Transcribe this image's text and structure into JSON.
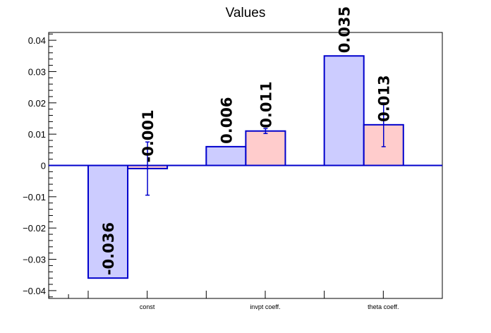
{
  "chart_data": {
    "type": "bar",
    "title": "Values",
    "categories": [
      "const",
      "invpt coeff.",
      "theta coeff."
    ],
    "series": [
      {
        "values": [
          -0.036,
          0.006,
          0.035
        ],
        "value_labels": [
          "-0.036",
          "0.006",
          "0.035"
        ],
        "fill": "#ccccff",
        "stroke": "#0000cc"
      },
      {
        "values": [
          -0.001,
          0.011,
          0.013
        ],
        "value_labels": [
          "-0.001",
          "0.011",
          "0.013"
        ],
        "errors": [
          0.0085,
          0.0008,
          0.007
        ],
        "fill": "#ffcccc",
        "stroke": "#0000cc"
      }
    ],
    "y_ticks": [
      -0.04,
      -0.03,
      -0.02,
      -0.01,
      0,
      0.01,
      0.02,
      0.03,
      0.04
    ],
    "y_tick_labels": [
      "−0.04",
      "−0.03",
      "−0.02",
      "−0.01",
      "0",
      "0.01",
      "0.02",
      "0.03",
      "0.04"
    ],
    "ylim": [
      -0.0425,
      0.0425
    ],
    "grid": false,
    "xlabel": "",
    "ylabel": ""
  }
}
